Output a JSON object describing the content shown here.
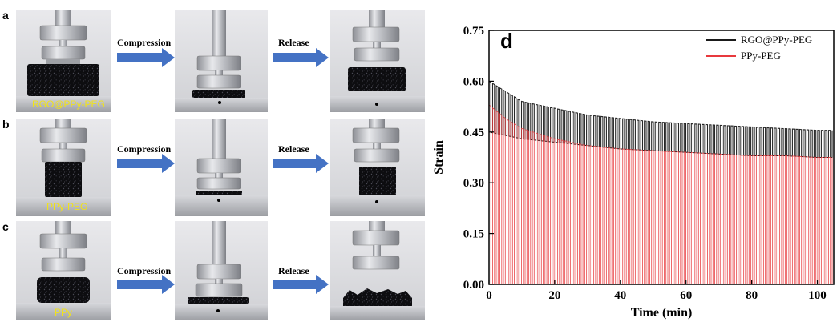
{
  "rows": [
    {
      "panel": "a",
      "sample_label": "RGO@PPy-PEG",
      "arrow1": "Compression",
      "arrow2": "Release"
    },
    {
      "panel": "b",
      "sample_label": "PPy-PEG",
      "arrow1": "Compression",
      "arrow2": "Release"
    },
    {
      "panel": "c",
      "sample_label": "PPy",
      "arrow1": "Compression",
      "arrow2": "Release"
    }
  ],
  "colors": {
    "arrow": "#4472c4",
    "photo_label": "#f0e21c",
    "sample": "#0d0d0f",
    "metal": "#c8c8cc"
  },
  "icons": {
    "arrow": "right-arrow-icon"
  },
  "chart_data": {
    "type": "line",
    "panel_label": "d",
    "xlabel": "Time (min)",
    "ylabel": "Strain",
    "xlim": [
      0,
      105
    ],
    "ylim": [
      0,
      0.75
    ],
    "xticks": [
      0,
      20,
      40,
      60,
      80,
      100
    ],
    "yticks": [
      "0.00",
      "0.15",
      "0.30",
      "0.45",
      "0.60",
      "0.75"
    ],
    "legend_position": "top-right",
    "series": [
      {
        "name": "RGO@PPy-PEG",
        "color": "#1a1a1a",
        "peak_x": [
          0,
          5,
          10,
          20,
          30,
          40,
          50,
          60,
          70,
          80,
          90,
          100,
          105
        ],
        "peak_y": [
          0.6,
          0.57,
          0.54,
          0.52,
          0.5,
          0.49,
          0.48,
          0.475,
          0.47,
          0.465,
          0.46,
          0.455,
          0.455
        ],
        "trough_y": [
          0.45,
          0.44,
          0.43,
          0.42,
          0.41,
          0.4,
          0.395,
          0.39,
          0.385,
          0.38,
          0.38,
          0.375,
          0.375
        ]
      },
      {
        "name": "PPy-PEG",
        "color": "#e8393d",
        "peak_x": [
          0,
          5,
          10,
          20,
          30,
          40,
          50,
          60,
          70,
          80,
          90,
          100,
          105
        ],
        "peak_y": [
          0.53,
          0.49,
          0.46,
          0.43,
          0.41,
          0.4,
          0.395,
          0.39,
          0.385,
          0.38,
          0.38,
          0.375,
          0.375
        ],
        "trough_y": [
          0.0,
          0.0,
          0.0,
          0.0,
          0.0,
          0.0,
          0.0,
          0.0,
          0.0,
          0.0,
          0.0,
          0.0,
          0.0
        ]
      }
    ]
  }
}
